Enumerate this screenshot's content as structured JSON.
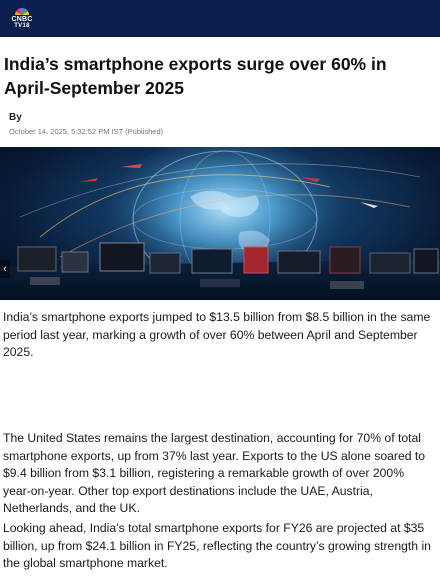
{
  "header": {
    "logo_line1": "CNBC",
    "logo_line2": "TV18"
  },
  "article": {
    "title": "India’s smartphone exports surge over 60% in April-September 2025",
    "byline": "By",
    "published": "October 14, 2025, 5:32:52 PM IST (Published)",
    "carousel_prev": "‹",
    "paragraphs": [
      "India’s smartphone exports jumped to $13.5 billion from $8.5 billion in the same period last year, marking a growth of over 60% between April and September 2025.",
      "The United States remains the largest destination, accounting for 70% of total smartphone exports, up from 37% last year. Exports to the US alone soared to $9.4 billion from $3.1 billion, registering a remarkable growth of over 200% year-on-year. Other top export destinations include the UAE, Austria, Netherlands, and the UK.",
      "Looking ahead, India’s total smartphone exports for FY26 are projected at $35 billion, up from $24.1 billion in FY25, reflecting the country’s growing strength in the global smartphone market."
    ]
  },
  "colors": {
    "topbar": "#0a1f4d",
    "hero_glow": "#2d7fb8"
  }
}
